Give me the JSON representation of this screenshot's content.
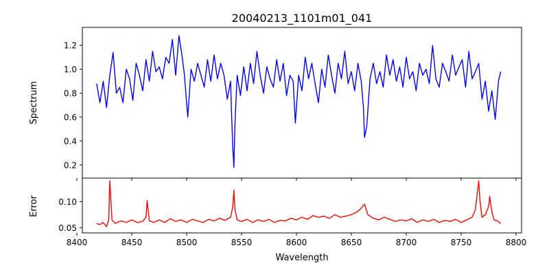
{
  "figure": {
    "title": "20040213_1101m01_041",
    "xlabel": "Wavelength"
  },
  "chart_data": [
    {
      "type": "line",
      "panel": "top",
      "ylabel": "Spectrum",
      "xlim": [
        8405,
        8805
      ],
      "ylim": [
        0.09,
        1.35
      ],
      "x_ticks": [
        8400,
        8450,
        8500,
        8550,
        8600,
        8650,
        8700,
        8750,
        8800
      ],
      "y_ticks": [
        0.2,
        0.4,
        0.6,
        0.8,
        1.0,
        1.2
      ],
      "y_tick_labels": [
        "0.2",
        "0.4",
        "0.6",
        "0.8",
        "1.0",
        "1.2"
      ],
      "show_x_tick_labels": false,
      "grid": false,
      "series": [
        {
          "color": "#0000ff",
          "x": [
            8418,
            8421,
            8424,
            8427,
            8430,
            8433,
            8436,
            8439,
            8442,
            8445,
            8448,
            8451,
            8454,
            8457,
            8460,
            8463,
            8466,
            8469,
            8472,
            8475,
            8478,
            8481,
            8484,
            8487,
            8490,
            8493,
            8496,
            8498,
            8501,
            8504,
            8507,
            8510,
            8513,
            8516,
            8519,
            8522,
            8525,
            8528,
            8531,
            8534,
            8537,
            8540,
            8541,
            8542,
            8543,
            8544,
            8546,
            8549,
            8552,
            8555,
            8558,
            8561,
            8564,
            8567,
            8570,
            8573,
            8576,
            8579,
            8582,
            8585,
            8588,
            8591,
            8594,
            8597,
            8599,
            8602,
            8605,
            8608,
            8611,
            8614,
            8617,
            8620,
            8623,
            8626,
            8629,
            8632,
            8635,
            8638,
            8641,
            8644,
            8647,
            8650,
            8653,
            8656,
            8659,
            8661,
            8662,
            8664,
            8667,
            8670,
            8673,
            8676,
            8679,
            8682,
            8685,
            8688,
            8691,
            8694,
            8697,
            8700,
            8703,
            8706,
            8709,
            8712,
            8715,
            8718,
            8721,
            8724,
            8727,
            8730,
            8733,
            8736,
            8739,
            8742,
            8745,
            8748,
            8751,
            8754,
            8757,
            8760,
            8763,
            8766,
            8769,
            8772,
            8775,
            8778,
            8781,
            8784,
            8786
          ],
          "y": [
            0.88,
            0.72,
            0.9,
            0.68,
            0.95,
            1.14,
            0.8,
            0.85,
            0.72,
            1.0,
            0.92,
            0.74,
            1.05,
            0.95,
            0.82,
            1.08,
            0.9,
            1.15,
            0.98,
            1.02,
            0.92,
            1.1,
            1.05,
            1.25,
            0.95,
            1.28,
            1.1,
            0.95,
            0.6,
            1.0,
            0.9,
            1.05,
            0.95,
            0.85,
            1.08,
            0.9,
            1.12,
            0.92,
            1.05,
            0.95,
            0.75,
            0.9,
            0.6,
            0.35,
            0.18,
            0.55,
            0.95,
            0.78,
            1.02,
            0.82,
            1.05,
            0.88,
            1.15,
            0.95,
            0.8,
            1.02,
            0.92,
            0.85,
            1.08,
            0.9,
            1.05,
            0.78,
            0.95,
            0.9,
            0.55,
            0.95,
            0.82,
            1.1,
            0.92,
            1.05,
            0.88,
            0.72,
            1.0,
            0.85,
            1.12,
            0.95,
            0.8,
            1.05,
            0.92,
            1.15,
            0.88,
            0.98,
            0.82,
            1.05,
            0.9,
            0.68,
            0.43,
            0.52,
            0.92,
            1.05,
            0.88,
            0.98,
            0.85,
            1.12,
            0.95,
            1.08,
            0.9,
            1.02,
            0.85,
            1.1,
            0.92,
            0.98,
            0.82,
            1.05,
            0.95,
            1.0,
            0.88,
            1.2,
            0.92,
            0.85,
            1.05,
            0.98,
            0.9,
            1.12,
            0.95,
            1.02,
            1.08,
            0.85,
            1.15,
            0.92,
            0.98,
            1.05,
            0.75,
            0.9,
            0.65,
            0.82,
            0.58,
            0.9,
            0.98
          ]
        }
      ]
    },
    {
      "type": "line",
      "panel": "bottom",
      "ylabel": "Error",
      "xlim": [
        8405,
        8805
      ],
      "ylim": [
        0.04,
        0.145
      ],
      "x_ticks": [
        8400,
        8450,
        8500,
        8550,
        8600,
        8650,
        8700,
        8750,
        8800
      ],
      "x_tick_labels": [
        "8400",
        "8450",
        "8500",
        "8550",
        "8600",
        "8650",
        "8700",
        "8750",
        "8800"
      ],
      "y_ticks": [
        0.05,
        0.1
      ],
      "y_tick_labels": [
        "0.05",
        "0.10"
      ],
      "grid": false,
      "series": [
        {
          "color": "#ff0000",
          "x": [
            8418,
            8421,
            8424,
            8427,
            8429,
            8430,
            8432,
            8435,
            8440,
            8445,
            8450,
            8455,
            8460,
            8463,
            8464,
            8466,
            8470,
            8475,
            8480,
            8485,
            8490,
            8495,
            8500,
            8505,
            8510,
            8515,
            8520,
            8525,
            8530,
            8535,
            8540,
            8542,
            8543,
            8544,
            8546,
            8550,
            8555,
            8560,
            8565,
            8570,
            8575,
            8580,
            8585,
            8590,
            8595,
            8600,
            8605,
            8610,
            8615,
            8620,
            8625,
            8630,
            8635,
            8640,
            8645,
            8650,
            8655,
            8658,
            8662,
            8665,
            8670,
            8675,
            8680,
            8685,
            8690,
            8695,
            8700,
            8705,
            8710,
            8715,
            8720,
            8725,
            8730,
            8735,
            8740,
            8745,
            8750,
            8755,
            8760,
            8763,
            8766,
            8767,
            8769,
            8772,
            8775,
            8776,
            8778,
            8780,
            8783,
            8786
          ],
          "y": [
            0.058,
            0.056,
            0.06,
            0.052,
            0.065,
            0.14,
            0.065,
            0.058,
            0.063,
            0.06,
            0.065,
            0.06,
            0.062,
            0.07,
            0.102,
            0.063,
            0.06,
            0.065,
            0.06,
            0.067,
            0.062,
            0.065,
            0.06,
            0.066,
            0.063,
            0.06,
            0.066,
            0.063,
            0.068,
            0.064,
            0.07,
            0.09,
            0.122,
            0.085,
            0.065,
            0.062,
            0.066,
            0.06,
            0.065,
            0.062,
            0.066,
            0.06,
            0.064,
            0.063,
            0.068,
            0.065,
            0.07,
            0.066,
            0.073,
            0.07,
            0.072,
            0.068,
            0.075,
            0.07,
            0.072,
            0.075,
            0.08,
            0.085,
            0.095,
            0.075,
            0.068,
            0.065,
            0.07,
            0.066,
            0.062,
            0.065,
            0.063,
            0.067,
            0.06,
            0.065,
            0.062,
            0.066,
            0.06,
            0.064,
            0.062,
            0.066,
            0.06,
            0.065,
            0.07,
            0.085,
            0.14,
            0.105,
            0.07,
            0.075,
            0.09,
            0.11,
            0.08,
            0.065,
            0.063,
            0.058
          ]
        }
      ]
    }
  ]
}
